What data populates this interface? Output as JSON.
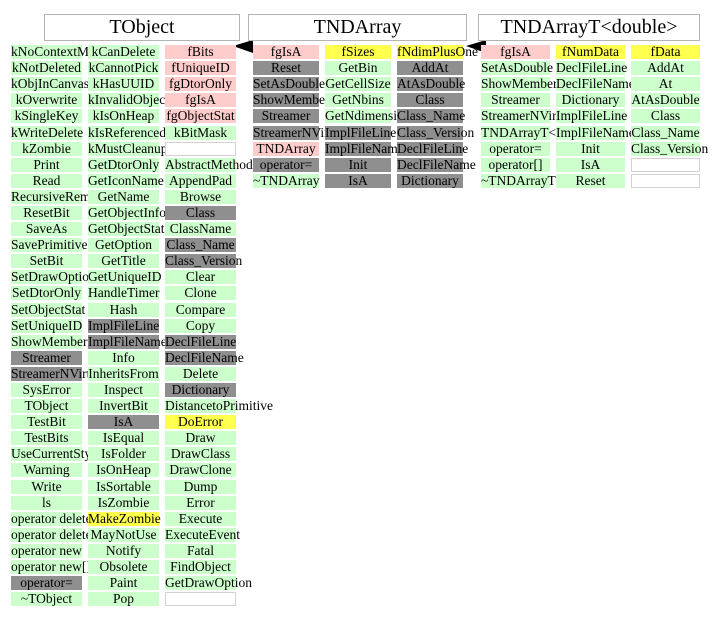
{
  "colors": {
    "green": "#ccffcc",
    "pink": "#ffcccc",
    "yellow": "#ffff4d",
    "gray": "#8f8f8f",
    "empty": "#ffffff"
  },
  "arrows": [
    {
      "name": "inheritance-arrow-tndarray-to-tobject",
      "direction": "left"
    },
    {
      "name": "inheritance-arrow-tndarrayt-to-tndarray",
      "direction": "left"
    }
  ],
  "classes": [
    {
      "title": "TObject",
      "columns": [
        {
          "cells": [
            {
              "label": "kNoContextMenu",
              "color": "green"
            },
            {
              "label": "kNotDeleted",
              "color": "green"
            },
            {
              "label": "kObjInCanvas",
              "color": "green"
            },
            {
              "label": "kOverwrite",
              "color": "green"
            },
            {
              "label": "kSingleKey",
              "color": "green"
            },
            {
              "label": "kWriteDelete",
              "color": "green"
            },
            {
              "label": "kZombie",
              "color": "green"
            },
            {
              "label": "Print",
              "color": "green"
            },
            {
              "label": "Read",
              "color": "green"
            },
            {
              "label": "RecursiveRemove",
              "color": "green"
            },
            {
              "label": "ResetBit",
              "color": "green"
            },
            {
              "label": "SaveAs",
              "color": "green"
            },
            {
              "label": "SavePrimitive",
              "color": "green"
            },
            {
              "label": "SetBit",
              "color": "green"
            },
            {
              "label": "SetDrawOption",
              "color": "green"
            },
            {
              "label": "SetDtorOnly",
              "color": "green"
            },
            {
              "label": "SetObjectStat",
              "color": "green"
            },
            {
              "label": "SetUniqueID",
              "color": "green"
            },
            {
              "label": "ShowMembers",
              "color": "green"
            },
            {
              "label": "Streamer",
              "color": "gray"
            },
            {
              "label": "StreamerNVirtual",
              "color": "gray"
            },
            {
              "label": "SysError",
              "color": "green"
            },
            {
              "label": "TObject",
              "color": "green"
            },
            {
              "label": "TestBit",
              "color": "green"
            },
            {
              "label": "TestBits",
              "color": "green"
            },
            {
              "label": "UseCurrentStyle",
              "color": "green"
            },
            {
              "label": "Warning",
              "color": "green"
            },
            {
              "label": "Write",
              "color": "green"
            },
            {
              "label": "ls",
              "color": "green"
            },
            {
              "label": "operator delete",
              "color": "green"
            },
            {
              "label": "operator delete[]",
              "color": "green"
            },
            {
              "label": "operator new",
              "color": "green"
            },
            {
              "label": "operator new[]",
              "color": "green"
            },
            {
              "label": "operator=",
              "color": "gray"
            },
            {
              "label": "~TObject",
              "color": "green"
            }
          ]
        },
        {
          "cells": [
            {
              "label": "kCanDelete",
              "color": "green"
            },
            {
              "label": "kCannotPick",
              "color": "green"
            },
            {
              "label": "kHasUUID",
              "color": "green"
            },
            {
              "label": "kInvalidObject",
              "color": "green"
            },
            {
              "label": "kIsOnHeap",
              "color": "green"
            },
            {
              "label": "kIsReferenced",
              "color": "green"
            },
            {
              "label": "kMustCleanup",
              "color": "green"
            },
            {
              "label": "GetDtorOnly",
              "color": "green"
            },
            {
              "label": "GetIconName",
              "color": "green"
            },
            {
              "label": "GetName",
              "color": "green"
            },
            {
              "label": "GetObjectInfo",
              "color": "green"
            },
            {
              "label": "GetObjectStat",
              "color": "green"
            },
            {
              "label": "GetOption",
              "color": "green"
            },
            {
              "label": "GetTitle",
              "color": "green"
            },
            {
              "label": "GetUniqueID",
              "color": "green"
            },
            {
              "label": "HandleTimer",
              "color": "green"
            },
            {
              "label": "Hash",
              "color": "green"
            },
            {
              "label": "ImplFileLine",
              "color": "gray"
            },
            {
              "label": "ImplFileName",
              "color": "gray"
            },
            {
              "label": "Info",
              "color": "green"
            },
            {
              "label": "InheritsFrom",
              "color": "green"
            },
            {
              "label": "Inspect",
              "color": "green"
            },
            {
              "label": "InvertBit",
              "color": "green"
            },
            {
              "label": "IsA",
              "color": "gray"
            },
            {
              "label": "IsEqual",
              "color": "green"
            },
            {
              "label": "IsFolder",
              "color": "green"
            },
            {
              "label": "IsOnHeap",
              "color": "green"
            },
            {
              "label": "IsSortable",
              "color": "green"
            },
            {
              "label": "IsZombie",
              "color": "green"
            },
            {
              "label": "MakeZombie",
              "color": "yellow"
            },
            {
              "label": "MayNotUse",
              "color": "green"
            },
            {
              "label": "Notify",
              "color": "green"
            },
            {
              "label": "Obsolete",
              "color": "green"
            },
            {
              "label": "Paint",
              "color": "green"
            },
            {
              "label": "Pop",
              "color": "green"
            }
          ]
        },
        {
          "cells": [
            {
              "label": "fBits",
              "color": "pink"
            },
            {
              "label": "fUniqueID",
              "color": "pink"
            },
            {
              "label": "fgDtorOnly",
              "color": "pink"
            },
            {
              "label": "fgIsA",
              "color": "pink"
            },
            {
              "label": "fgObjectStat",
              "color": "pink"
            },
            {
              "label": "kBitMask",
              "color": "green"
            },
            {
              "label": "",
              "color": "empty"
            },
            {
              "label": "AbstractMethod",
              "color": "green"
            },
            {
              "label": "AppendPad",
              "color": "green"
            },
            {
              "label": "Browse",
              "color": "green"
            },
            {
              "label": "Class",
              "color": "gray"
            },
            {
              "label": "ClassName",
              "color": "green"
            },
            {
              "label": "Class_Name",
              "color": "gray"
            },
            {
              "label": "Class_Version",
              "color": "gray"
            },
            {
              "label": "Clear",
              "color": "green"
            },
            {
              "label": "Clone",
              "color": "green"
            },
            {
              "label": "Compare",
              "color": "green"
            },
            {
              "label": "Copy",
              "color": "green"
            },
            {
              "label": "DeclFileLine",
              "color": "gray"
            },
            {
              "label": "DeclFileName",
              "color": "gray"
            },
            {
              "label": "Delete",
              "color": "green"
            },
            {
              "label": "Dictionary",
              "color": "gray"
            },
            {
              "label": "DistancetoPrimitive",
              "color": "green"
            },
            {
              "label": "DoError",
              "color": "yellow"
            },
            {
              "label": "Draw",
              "color": "green"
            },
            {
              "label": "DrawClass",
              "color": "green"
            },
            {
              "label": "DrawClone",
              "color": "green"
            },
            {
              "label": "Dump",
              "color": "green"
            },
            {
              "label": "Error",
              "color": "green"
            },
            {
              "label": "Execute",
              "color": "green"
            },
            {
              "label": "ExecuteEvent",
              "color": "green"
            },
            {
              "label": "Fatal",
              "color": "green"
            },
            {
              "label": "FindObject",
              "color": "green"
            },
            {
              "label": "GetDrawOption",
              "color": "green"
            },
            {
              "label": "",
              "color": "empty"
            }
          ]
        }
      ]
    },
    {
      "title": "TNDArray",
      "columns": [
        {
          "cells": [
            {
              "label": "fgIsA",
              "color": "pink"
            },
            {
              "label": "Reset",
              "color": "gray"
            },
            {
              "label": "SetAsDouble",
              "color": "gray"
            },
            {
              "label": "ShowMembers",
              "color": "gray"
            },
            {
              "label": "Streamer",
              "color": "gray"
            },
            {
              "label": "StreamerNVirtual",
              "color": "gray"
            },
            {
              "label": "TNDArray",
              "color": "pink"
            },
            {
              "label": "operator=",
              "color": "gray"
            },
            {
              "label": "~TNDArray",
              "color": "green"
            }
          ]
        },
        {
          "cells": [
            {
              "label": "fSizes",
              "color": "yellow"
            },
            {
              "label": "GetBin",
              "color": "green"
            },
            {
              "label": "GetCellSize",
              "color": "green"
            },
            {
              "label": "GetNbins",
              "color": "green"
            },
            {
              "label": "GetNdimensions",
              "color": "green"
            },
            {
              "label": "ImplFileLine",
              "color": "gray"
            },
            {
              "label": "ImplFileName",
              "color": "gray"
            },
            {
              "label": "Init",
              "color": "gray"
            },
            {
              "label": "IsA",
              "color": "gray"
            }
          ]
        },
        {
          "cells": [
            {
              "label": "fNdimPlusOne",
              "color": "yellow"
            },
            {
              "label": "AddAt",
              "color": "gray"
            },
            {
              "label": "AtAsDouble",
              "color": "gray"
            },
            {
              "label": "Class",
              "color": "gray"
            },
            {
              "label": "Class_Name",
              "color": "gray"
            },
            {
              "label": "Class_Version",
              "color": "gray"
            },
            {
              "label": "DeclFileLine",
              "color": "gray"
            },
            {
              "label": "DeclFileName",
              "color": "gray"
            },
            {
              "label": "Dictionary",
              "color": "gray"
            }
          ]
        }
      ]
    },
    {
      "title": "TNDArrayT<double>",
      "columns": [
        {
          "cells": [
            {
              "label": "fgIsA",
              "color": "pink"
            },
            {
              "label": "SetAsDouble",
              "color": "green"
            },
            {
              "label": "ShowMembers",
              "color": "green"
            },
            {
              "label": "Streamer",
              "color": "green"
            },
            {
              "label": "StreamerNVirtual",
              "color": "green"
            },
            {
              "label": "TNDArrayT<double>",
              "color": "green"
            },
            {
              "label": "operator=",
              "color": "green"
            },
            {
              "label": "operator[]",
              "color": "green"
            },
            {
              "label": "~TNDArrayT<double>",
              "color": "green"
            }
          ]
        },
        {
          "cells": [
            {
              "label": "fNumData",
              "color": "yellow"
            },
            {
              "label": "DeclFileLine",
              "color": "green"
            },
            {
              "label": "DeclFileName",
              "color": "green"
            },
            {
              "label": "Dictionary",
              "color": "green"
            },
            {
              "label": "ImplFileLine",
              "color": "green"
            },
            {
              "label": "ImplFileName",
              "color": "green"
            },
            {
              "label": "Init",
              "color": "green"
            },
            {
              "label": "IsA",
              "color": "green"
            },
            {
              "label": "Reset",
              "color": "green"
            }
          ]
        },
        {
          "cells": [
            {
              "label": "fData",
              "color": "yellow"
            },
            {
              "label": "AddAt",
              "color": "green"
            },
            {
              "label": "At",
              "color": "green"
            },
            {
              "label": "AtAsDouble",
              "color": "green"
            },
            {
              "label": "Class",
              "color": "green"
            },
            {
              "label": "Class_Name",
              "color": "green"
            },
            {
              "label": "Class_Version",
              "color": "green"
            },
            {
              "label": "",
              "color": "empty"
            },
            {
              "label": "",
              "color": "empty"
            }
          ]
        }
      ]
    }
  ]
}
